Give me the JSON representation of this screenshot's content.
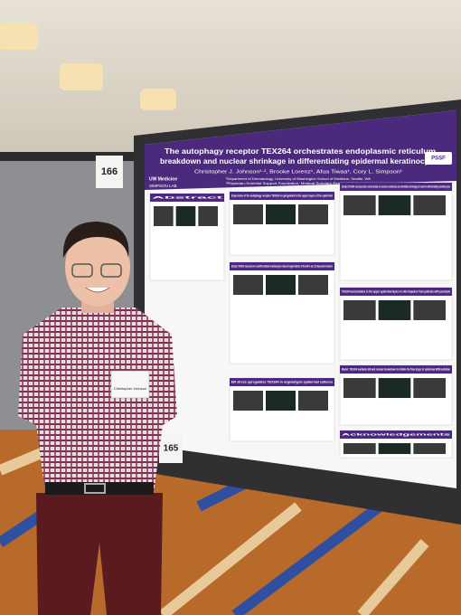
{
  "scene": {
    "booth_numbers": [
      "166",
      "165"
    ],
    "badge": "Christopher Johnson",
    "poster": {
      "title_lines": [
        "The autophagy receptor TEX264 orchestrates endoplasmic reticulum",
        "breakdown and nuclear shrinkage in differentiating epidermal keratinocytes"
      ],
      "authors": "Christopher J. Johnson¹·², Brooke Lorenz¹, Afua Tiwaa¹, Cory L. Simpson¹",
      "affiliations": [
        "¹Department of Dermatology, University of Washington School of Medicine, Seattle, WA",
        "²Physician-Scientist Support Foundation, Medical Scholars Research Fellowship"
      ],
      "logos": [
        "UW Medicine",
        "SIMPSON LAB",
        "PSSF"
      ],
      "sections": [
        "Abstract",
        "Expression of the autophagy receptor TEX264 is upregulated in the upper layers of the epidermis",
        "Ectopic TEX264 expression in undifferentiated keratinocytes induces fragmentation of the ER in an LC3-dependent manner",
        "Ectopic TEX264 overexpression concentrates on nuclear membranes and facilitates shrinkage of nuclei in differentiating keratinocytes",
        "TEX264 accumulates in the upper epidermal layers in skin biopsies from patients with psoriasis",
        "Model: TEX264 mediates ER and nuclear breakdown to initiate the final steps of epidermal differentiation",
        "ER stress upregulates TEX264 in organotypic epidermal cultures",
        "Acknowledgements"
      ]
    }
  }
}
